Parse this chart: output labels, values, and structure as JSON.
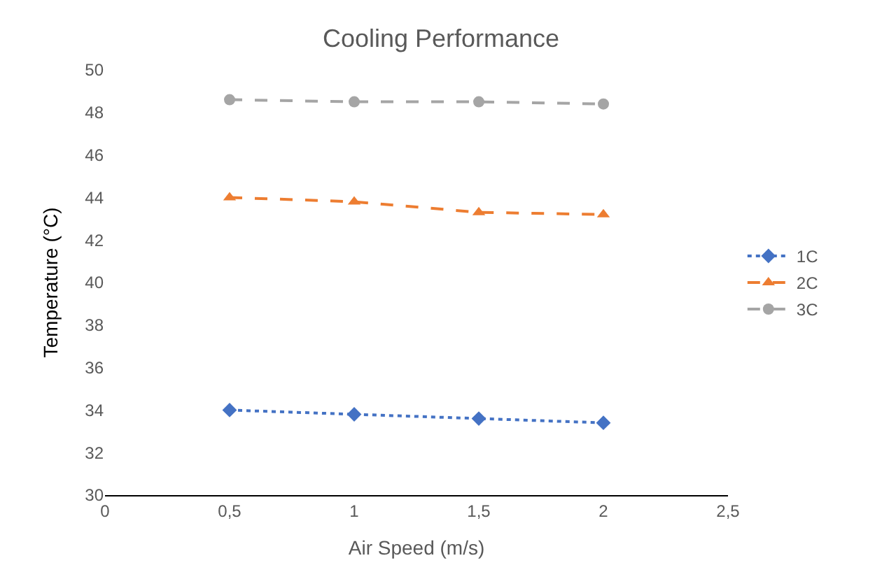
{
  "chart_data": {
    "type": "line",
    "title": "Cooling Performance",
    "xlabel": "Air Speed (m/s)",
    "ylabel": "Temperature (°C)",
    "x": [
      0.5,
      1,
      1.5,
      2
    ],
    "series": [
      {
        "name": "1C",
        "color": "#4472c4",
        "values": [
          34.0,
          33.8,
          33.6,
          33.4
        ],
        "marker": "diamond",
        "line_style": "dotted"
      },
      {
        "name": "2C",
        "color": "#ed7d31",
        "values": [
          44.0,
          43.8,
          43.3,
          43.2
        ],
        "marker": "triangle",
        "line_style": "dashed"
      },
      {
        "name": "3C",
        "color": "#a5a5a5",
        "values": [
          48.6,
          48.5,
          48.5,
          48.4
        ],
        "marker": "circle",
        "line_style": "dashed"
      }
    ],
    "xlim": [
      0,
      2.5
    ],
    "xticks": [
      0,
      {
        "value": 0.5,
        "label": "0,5"
      },
      1,
      {
        "value": 1.5,
        "label": "1,5"
      },
      2,
      {
        "value": 2.5,
        "label": "2,5"
      }
    ],
    "ylim": [
      30,
      50
    ],
    "yticks": [
      30,
      32,
      34,
      36,
      38,
      40,
      42,
      44,
      46,
      48,
      50
    ],
    "grid": false,
    "legend": "right"
  }
}
